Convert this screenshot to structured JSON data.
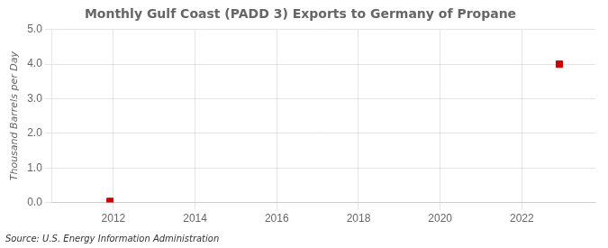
{
  "chart_data": {
    "type": "scatter",
    "title": "Monthly Gulf Coast (PADD 3) Exports to Germany of Propane",
    "ylabel": "Thousand Barrels per Day",
    "annotations": [
      "Source: U.S. Energy Information Administration"
    ],
    "x": [
      2011.917,
      2022.917
    ],
    "values": [
      0.034,
      4.0
    ],
    "color": "#cc0000",
    "marker": "square",
    "xlim": [
      2010.5,
      2023.8
    ],
    "xticks": [
      2012,
      2014,
      2016,
      2018,
      2020,
      2022
    ],
    "ylim": [
      0.0,
      5.0
    ],
    "yticks": [
      {
        "value": 0.0,
        "label": "0.0"
      },
      {
        "value": 1.0,
        "label": "1.0"
      },
      {
        "value": 2.0,
        "label": "2.0"
      },
      {
        "value": 3.0,
        "label": "3.0"
      },
      {
        "value": 4.0,
        "label": "4.0"
      },
      {
        "value": 5.0,
        "label": "5.0"
      }
    ],
    "grid": true
  }
}
